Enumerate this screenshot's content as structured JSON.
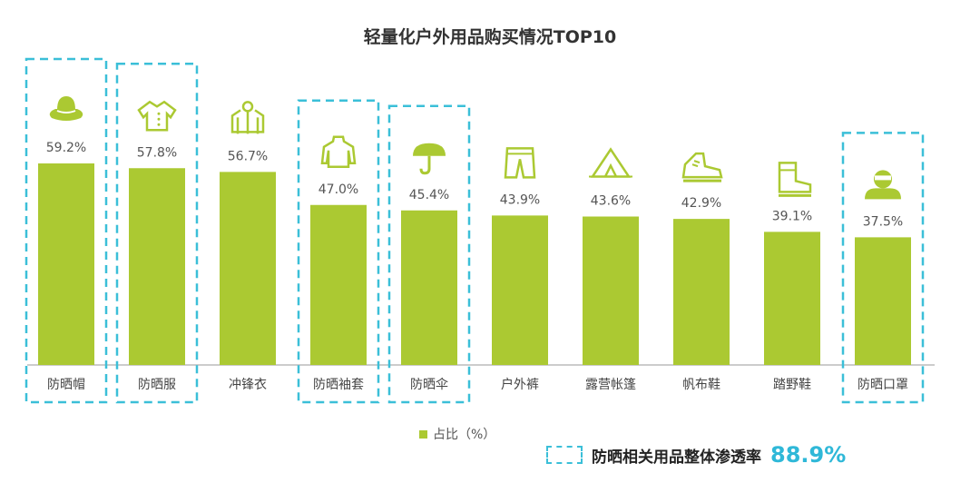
{
  "title": "轻量化户外用品购买情况TOP10",
  "chart_data": {
    "type": "bar",
    "title": "轻量化户外用品购买情况TOP10",
    "categories": [
      "防晒帽",
      "防晒服",
      "冲锋衣",
      "防晒袖套",
      "防晒伞",
      "户外裤",
      "露营帐篷",
      "帆布鞋",
      "踏野鞋",
      "防晒口罩"
    ],
    "series": [
      {
        "name": "占比（%）",
        "values": [
          59.2,
          57.8,
          56.7,
          47.0,
          45.4,
          43.9,
          43.6,
          42.9,
          39.1,
          37.5
        ]
      }
    ],
    "value_labels": [
      "59.2%",
      "57.8%",
      "56.7%",
      "47.0%",
      "45.4%",
      "43.9%",
      "43.6%",
      "42.9%",
      "39.1%",
      "37.5%"
    ],
    "icons": [
      "hat-icon",
      "sun-jacket-icon",
      "hooded-jacket-icon",
      "sleeve-shirt-icon",
      "umbrella-icon",
      "pants-icon",
      "tent-icon",
      "canvas-shoe-icon",
      "hiking-boot-icon",
      "face-mask-icon"
    ],
    "highlighted": [
      "防晒帽",
      "防晒服",
      "防晒袖套",
      "防晒伞",
      "防晒口罩"
    ],
    "ylim": [
      0,
      70
    ],
    "grid": false,
    "legend": "bottom",
    "xlabel": "",
    "ylabel": ""
  },
  "legend": {
    "label": "占比（%）"
  },
  "note": {
    "label": "防晒相关用品整体渗透率",
    "value": "88.9%"
  },
  "colors": {
    "bar": "#abc932",
    "highlight": "#3bbfd8",
    "axis": "#bbbbbb"
  }
}
